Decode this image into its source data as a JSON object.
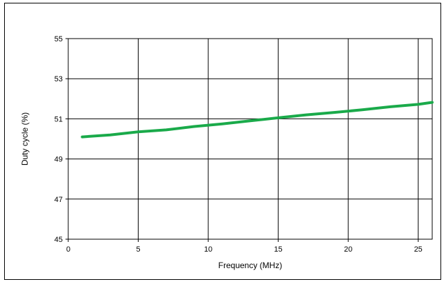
{
  "chart_data": {
    "type": "line",
    "title": "",
    "xlabel": "Frequency (MHz)",
    "ylabel": "Duty cycle (%)",
    "xlim": [
      0,
      26
    ],
    "ylim": [
      45,
      55
    ],
    "x_ticks": [
      0,
      5,
      10,
      15,
      20,
      25
    ],
    "y_ticks": [
      45,
      47,
      49,
      51,
      53,
      55
    ],
    "x_tick_labels": [
      "0",
      "5",
      "10",
      "15",
      "20",
      "25"
    ],
    "y_tick_labels": [
      "45",
      "47",
      "49",
      "51",
      "53",
      "55"
    ],
    "grid": true,
    "legend": "none",
    "series": [
      {
        "color": "#1aaa4a",
        "x": [
          1,
          3,
          5,
          7,
          9,
          11,
          13,
          15,
          17,
          19,
          21,
          23,
          25,
          26
        ],
        "y": [
          50.1,
          50.2,
          50.35,
          50.45,
          50.62,
          50.75,
          50.9,
          51.05,
          51.2,
          51.32,
          51.45,
          51.6,
          51.72,
          51.82
        ]
      }
    ]
  }
}
